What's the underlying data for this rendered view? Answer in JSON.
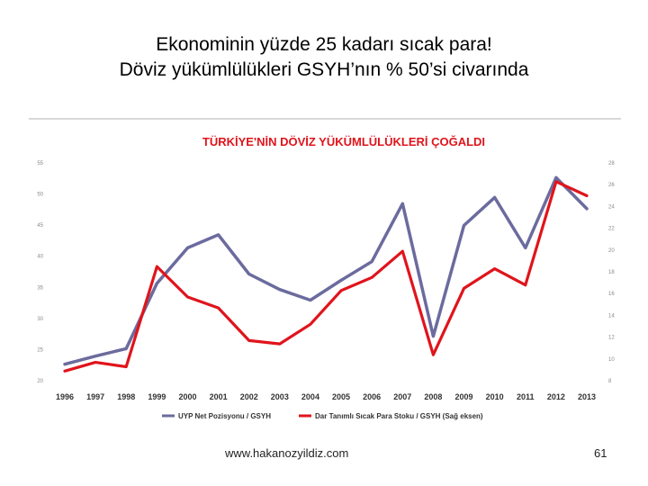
{
  "slide": {
    "title_line1": "Ekonominin yüzde 25 kadarı sıcak para!",
    "title_line2": "Döviz yükümlülükleri GSYH’nın % 50’si civarında",
    "footer_url": "www.hakanozyildiz.com",
    "page_number": "61"
  },
  "chart_data": {
    "type": "line",
    "title": "TÜRKİYE'NİN DÖVİZ YÜKÜMLÜLÜKLERİ ÇOĞALDI",
    "categories": [
      "1996",
      "1997",
      "1998",
      "1999",
      "2000",
      "2001",
      "2002",
      "2003",
      "2004",
      "2005",
      "2006",
      "2007",
      "2008",
      "2009",
      "2010",
      "2011",
      "2012",
      "2013"
    ],
    "left_axis": {
      "ylim": [
        20,
        55
      ],
      "ticks": [
        "20",
        "25",
        "30",
        "35",
        "40",
        "45",
        "50",
        "55"
      ]
    },
    "right_axis": {
      "ylim": [
        8,
        28
      ],
      "ticks": [
        "8",
        "10",
        "12",
        "14",
        "16",
        "18",
        "20",
        "22",
        "24",
        "26",
        "28"
      ]
    },
    "series": [
      {
        "name": "UYP Net Pozisyonu / GSYH",
        "axis": "left",
        "color": "#6b6b9e",
        "values": [
          22.5,
          23.8,
          25.0,
          35.5,
          41.2,
          43.3,
          37.0,
          34.5,
          32.8,
          36.0,
          39.0,
          48.3,
          27.0,
          44.8,
          49.3,
          41.2,
          52.5,
          47.5
        ]
      },
      {
        "name": "Dar Tanımlı Sıcak Para Stoku / GSYH (Sağ eksen)",
        "axis": "right",
        "color": "#e0141c",
        "values": [
          8.8,
          9.6,
          9.2,
          18.4,
          15.6,
          14.6,
          11.6,
          11.3,
          13.1,
          16.2,
          17.4,
          19.8,
          10.3,
          16.4,
          18.2,
          16.7,
          26.2,
          24.9
        ]
      }
    ],
    "grid": false,
    "legend_position": "bottom"
  },
  "colors": {
    "left_series": "#6b6b9e",
    "right_series": "#e0141c",
    "title_color": "#e0141c"
  }
}
